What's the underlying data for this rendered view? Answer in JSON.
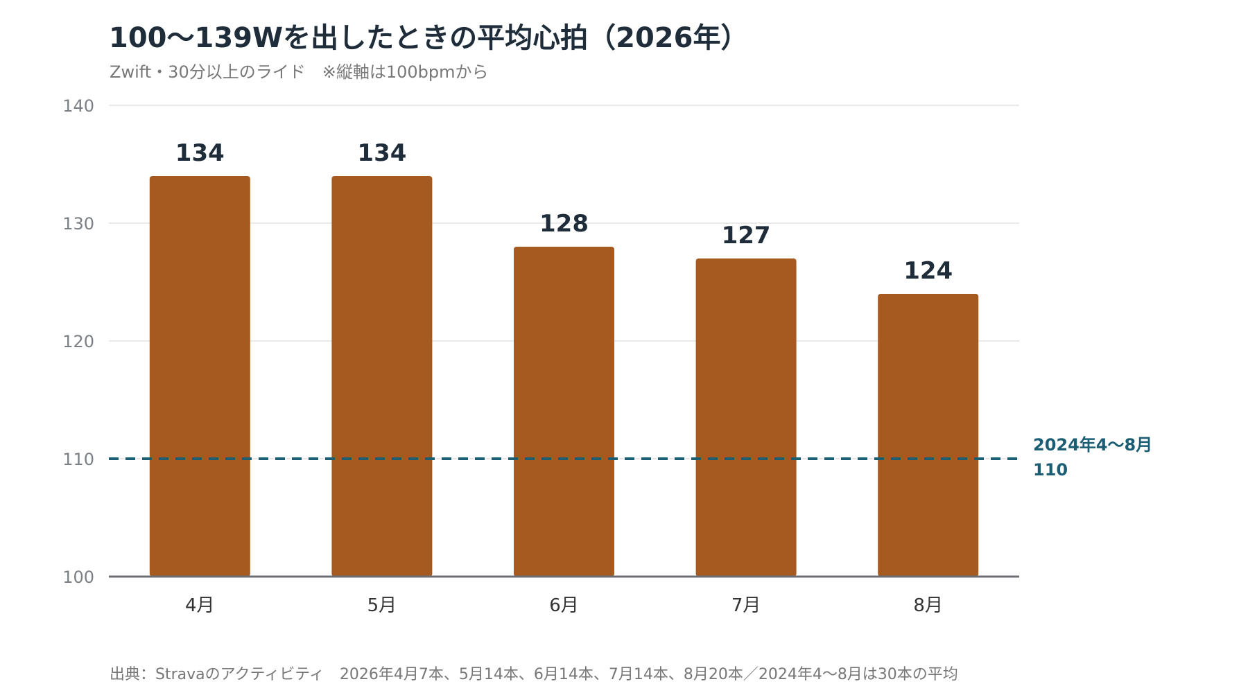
{
  "colors": {
    "bar": "#A65A20",
    "reference": "#1B5E73",
    "grid": "#E3E3E3",
    "axis": "#6B6E73",
    "tick_label": "#7A7F85",
    "value_label": "#1F2D3A",
    "title": "#1F2D3A",
    "subtitle": "#777777"
  },
  "chart_data": {
    "type": "bar",
    "title": "100〜139Wを出したときの平均心拍（2026年）",
    "subtitle": "Zwift・30分以上のライド　※縦軸は100bpmから",
    "categories": [
      "4月",
      "5月",
      "6月",
      "7月",
      "8月"
    ],
    "values": [
      134,
      134,
      128,
      127,
      124
    ],
    "value_labels": [
      "134",
      "134",
      "128",
      "127",
      "124"
    ],
    "ylim": [
      100,
      140
    ],
    "yticks": [
      100,
      110,
      120,
      130,
      140
    ],
    "ytick_labels": [
      "100",
      "110",
      "120",
      "130",
      "140"
    ],
    "grid": true,
    "reference_line": {
      "value": 110,
      "label": "2024年4〜8月",
      "value_label": "110",
      "style": "dashed"
    },
    "source": "出典：Stravaのアクティビティ　2026年4月7本、5月14本、6月14本、7月14本、8月20本／2024年4〜8月は30本の平均"
  }
}
